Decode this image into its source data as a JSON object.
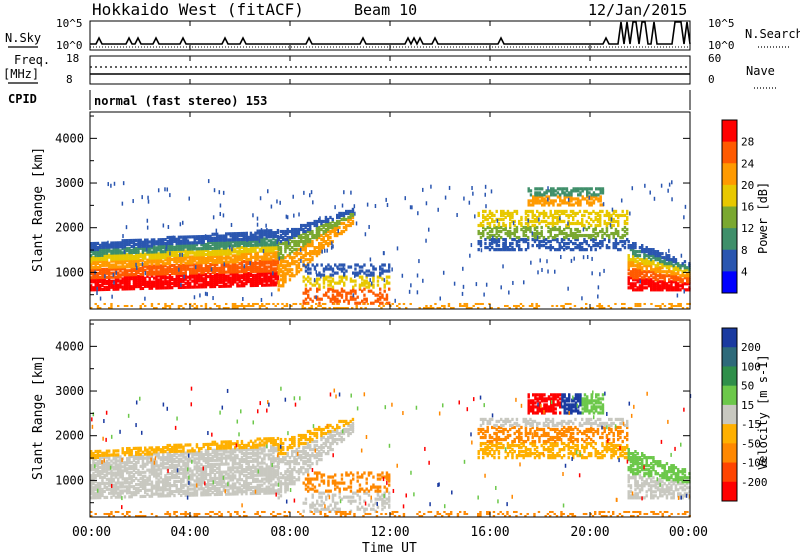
{
  "header": {
    "station": "Hokkaido West (fitACF)",
    "beam": "Beam 10",
    "date": "12/Jan/2015"
  },
  "noise_panel": {
    "left_label": "N.Sky",
    "left_ticks": [
      "10^5",
      "10^0"
    ],
    "right_label": "N.Search",
    "right_ticks": [
      "10^5",
      "10^0"
    ]
  },
  "freq_panel": {
    "left_label_1": "Freq.",
    "left_label_2": "[MHz]",
    "left_ticks": [
      "18",
      "8"
    ],
    "right_label": "Nave",
    "right_ticks": [
      "60",
      "0"
    ]
  },
  "cpid_panel": {
    "label": "CPID",
    "value": "normal (fast stereo) 153"
  },
  "chart_data": [
    {
      "type": "heatmap",
      "panel": "power",
      "ylabel": "Slant Range [km]",
      "yticks": [
        "4000",
        "3000",
        "2000",
        "1000"
      ],
      "ylim": [
        180,
        4590
      ],
      "xlim_hours": [
        0,
        24
      ],
      "colorbar_label": "Power [dB]",
      "colorbar_ticks": [
        "28",
        "24",
        "20",
        "16",
        "12",
        "8",
        "4"
      ],
      "colorbar_colors": [
        "#ff0000",
        "#ff5a00",
        "#ff9a00",
        "#e8c800",
        "#7aa830",
        "#3f8f6a",
        "#2a56b0",
        "#0000ff"
      ]
    },
    {
      "type": "heatmap",
      "panel": "velocity",
      "ylabel": "Slant Range [km]",
      "yticks": [
        "4000",
        "3000",
        "2000",
        "1000"
      ],
      "ylim": [
        180,
        4590
      ],
      "xlim_hours": [
        0,
        24
      ],
      "colorbar_label": "Velocity [m s-1]",
      "colorbar_ticks": [
        "200",
        "100",
        "50",
        "15",
        "-15",
        "-50",
        "-100",
        "-200"
      ],
      "colorbar_colors": [
        "#1a3aa0",
        "#2e6a7a",
        "#2f8f4a",
        "#6cc84a",
        "#c8c8c0",
        "#ffb000",
        "#ff8800",
        "#ff4400",
        "#ff0000"
      ]
    }
  ],
  "xaxis": {
    "ticks": [
      "00:00",
      "04:00",
      "08:00",
      "12:00",
      "16:00",
      "20:00",
      "00:00"
    ],
    "label": "Time UT"
  }
}
